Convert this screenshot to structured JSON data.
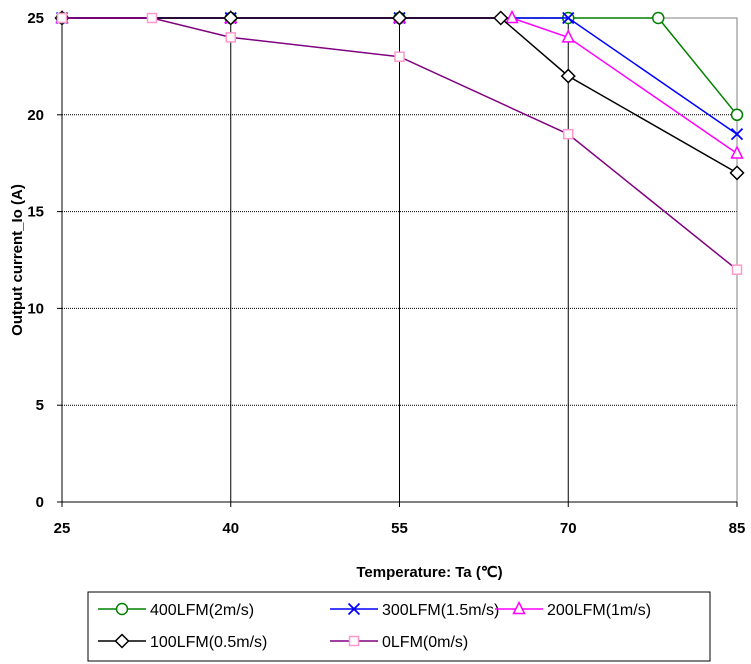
{
  "chart_data": {
    "type": "line",
    "xlabel": "Temperature: Ta (℃)",
    "ylabel": "Output current_Io (A)",
    "xlim": [
      25,
      85
    ],
    "ylim": [
      0,
      25
    ],
    "x_ticks": [
      "25",
      "40",
      "55",
      "70",
      "85"
    ],
    "y_ticks": [
      "0",
      "5",
      "10",
      "15",
      "20",
      "25"
    ],
    "grid": "horizontal and vertical at major ticks",
    "legend_position": "bottom",
    "series": [
      {
        "name": "400LFM(2m/s)",
        "color": "#008000",
        "marker": "circle",
        "points": [
          [
            25,
            25
          ],
          [
            40,
            25
          ],
          [
            55,
            25
          ],
          [
            70,
            25
          ],
          [
            78,
            25
          ],
          [
            85,
            20
          ]
        ]
      },
      {
        "name": "300LFM(1.5m/s)",
        "color": "#0000ff",
        "marker": "x",
        "points": [
          [
            25,
            25
          ],
          [
            40,
            25
          ],
          [
            55,
            25
          ],
          [
            70,
            25
          ],
          [
            85,
            19
          ]
        ]
      },
      {
        "name": "200LFM(1m/s)",
        "color": "#ff00ff",
        "marker": "triangle",
        "points": [
          [
            25,
            25
          ],
          [
            40,
            25
          ],
          [
            55,
            25
          ],
          [
            65,
            25
          ],
          [
            70,
            24
          ],
          [
            85,
            18
          ]
        ]
      },
      {
        "name": "100LFM(0.5m/s)",
        "color": "#000000",
        "marker": "diamond",
        "points": [
          [
            25,
            25
          ],
          [
            40,
            25
          ],
          [
            55,
            25
          ],
          [
            64,
            25
          ],
          [
            70,
            22
          ],
          [
            85,
            17
          ]
        ]
      },
      {
        "name": "0LFM(0m/s)",
        "color": "#800080",
        "marker": "square",
        "marker_color": "#ff99cc",
        "points": [
          [
            25,
            25
          ],
          [
            33,
            25
          ],
          [
            40,
            24
          ],
          [
            55,
            23
          ],
          [
            70,
            19
          ],
          [
            85,
            12
          ]
        ]
      }
    ]
  }
}
